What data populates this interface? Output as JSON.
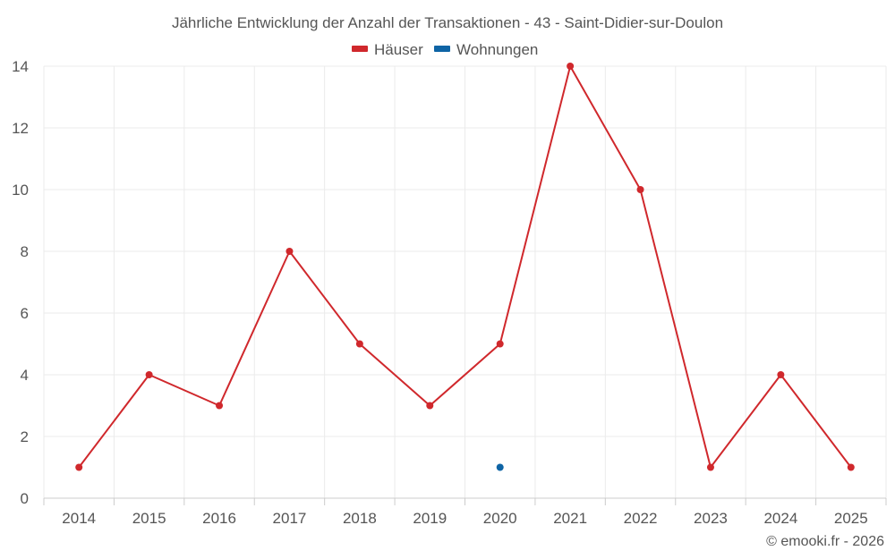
{
  "chart_data": {
    "type": "line",
    "title": "Jährliche Entwicklung der Anzahl der Transaktionen - 43 - Saint-Didier-sur-Doulon",
    "categories": [
      "2014",
      "2015",
      "2016",
      "2017",
      "2018",
      "2019",
      "2020",
      "2021",
      "2022",
      "2023",
      "2024",
      "2025"
    ],
    "series": [
      {
        "name": "Häuser",
        "color": "#d0282c",
        "values": [
          1,
          4,
          3,
          8,
          5,
          3,
          5,
          14,
          10,
          1,
          4,
          1
        ]
      },
      {
        "name": "Wohnungen",
        "color": "#0e64a5",
        "values": [
          null,
          null,
          null,
          null,
          null,
          null,
          1,
          null,
          null,
          null,
          null,
          null
        ]
      }
    ],
    "ylim": [
      0,
      14
    ],
    "yticks": [
      0,
      2,
      4,
      6,
      8,
      10,
      12,
      14
    ],
    "grid": true,
    "legend": "top-center",
    "credit": "© emooki.fr - 2026"
  }
}
